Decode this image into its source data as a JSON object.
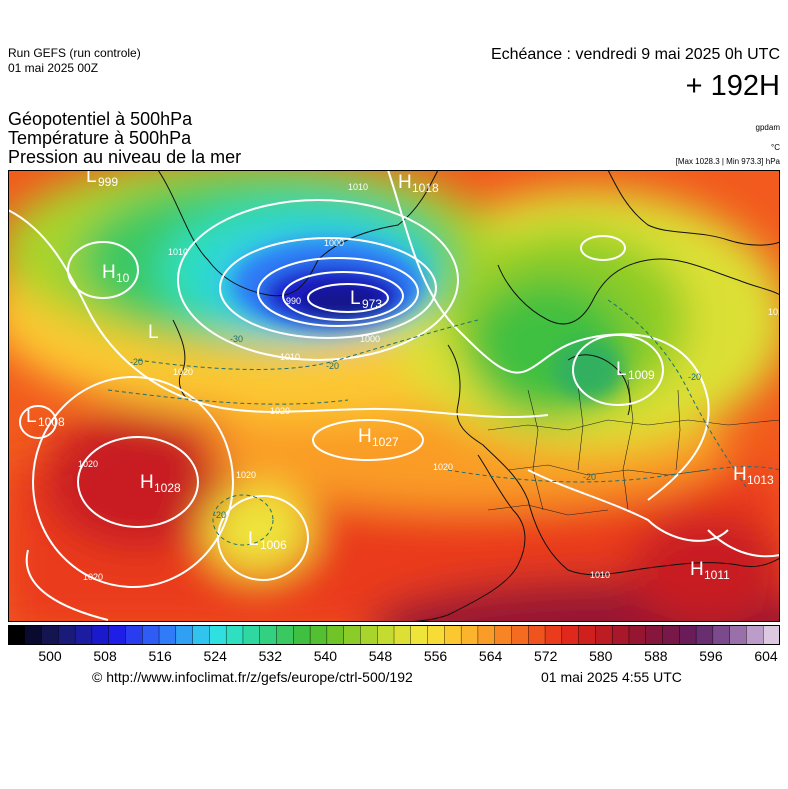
{
  "header": {
    "run_line1": "Run GEFS (run controle)",
    "run_line2": "01 mai 2025 00Z",
    "echeance": "Echéance : vendredi 9 mai 2025 0h UTC",
    "lead_time": "+ 192H"
  },
  "fields": {
    "line1": "Géopotentiel à 500hPa",
    "line2": "Température à 500hPa",
    "line3": "Pression au niveau de la mer"
  },
  "units": {
    "geopotential": "gpdam",
    "temperature": "°C",
    "pressure": "[Max 1028.3 | Min 973.3] hPa"
  },
  "map": {
    "centers": [
      {
        "type": "H",
        "value": "1028"
      },
      {
        "type": "H",
        "value": "1027"
      },
      {
        "type": "H",
        "value": "1011"
      },
      {
        "type": "H",
        "value": "1013"
      },
      {
        "type": "H",
        "value": "1018"
      },
      {
        "type": "H",
        "value": "10"
      },
      {
        "type": "L",
        "value": "973"
      },
      {
        "type": "L",
        "value": "1006"
      },
      {
        "type": "L",
        "value": "1009"
      },
      {
        "type": "L",
        "value": "999"
      },
      {
        "type": "L",
        "value": "1008"
      },
      {
        "type": "L",
        "value": ""
      }
    ],
    "isobar_labels": [
      "1020",
      "1020",
      "1020",
      "1020",
      "1010",
      "1010",
      "1010",
      "1000",
      "1000",
      "990",
      "1010",
      "1020",
      "1010",
      "1020"
    ],
    "isotherm_labels": [
      "-20",
      "-20",
      "-30",
      "-20",
      "-20",
      "-20"
    ]
  },
  "colorbar": {
    "ticks": [
      "500",
      "508",
      "516",
      "524",
      "532",
      "540",
      "548",
      "556",
      "564",
      "572",
      "580",
      "588",
      "596",
      "604"
    ],
    "colors": [
      "#000000",
      "#0a0a2e",
      "#141450",
      "#1a1a78",
      "#1c1ca0",
      "#1a1acc",
      "#1e1ee6",
      "#2a3cf0",
      "#2e5cf4",
      "#2f7cf6",
      "#30a0f4",
      "#30c4ee",
      "#2ee0e0",
      "#2ee0c0",
      "#2ed8a0",
      "#32d080",
      "#3ac860",
      "#40c040",
      "#52c030",
      "#70c428",
      "#8ccc28",
      "#a8d42c",
      "#c4dc30",
      "#dce034",
      "#eee43a",
      "#f8dc36",
      "#fcc830",
      "#fcb42c",
      "#fa9c28",
      "#f88424",
      "#f46c20",
      "#f0541e",
      "#ea3c1c",
      "#e0281c",
      "#d0201e",
      "#bc1c22",
      "#a8182a",
      "#961632",
      "#86163c",
      "#781848",
      "#6a1c58",
      "#682e70",
      "#7a4a8c",
      "#9a70aa",
      "#bc9cc8",
      "#dcc8e0"
    ]
  },
  "footer": {
    "url": "© http://www.infoclimat.fr/z/gefs/europe/ctrl-500/192",
    "timestamp": "01 mai 2025  4:55 UTC"
  }
}
